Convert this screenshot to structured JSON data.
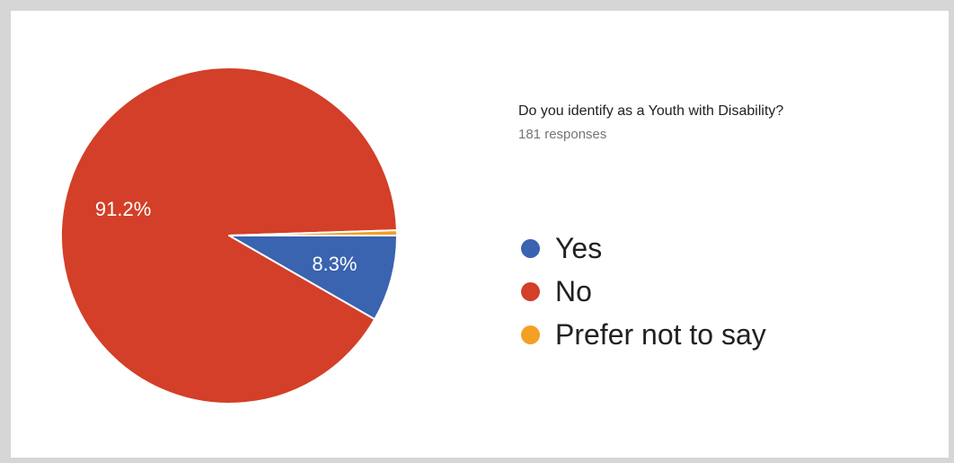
{
  "chart_data": {
    "type": "pie",
    "title": "Do you identify as a Youth with Disability?",
    "subtitle": "181 responses",
    "legend_position": "right",
    "slices": [
      {
        "label": "Yes",
        "percent": 8.3,
        "value_label": "8.3%",
        "color": "#3a63b0"
      },
      {
        "label": "No",
        "percent": 91.2,
        "value_label": "91.2%",
        "color": "#d33f28"
      },
      {
        "label": "Prefer not to say",
        "percent": 0.5,
        "value_label": "",
        "color": "#f4a024"
      }
    ]
  }
}
